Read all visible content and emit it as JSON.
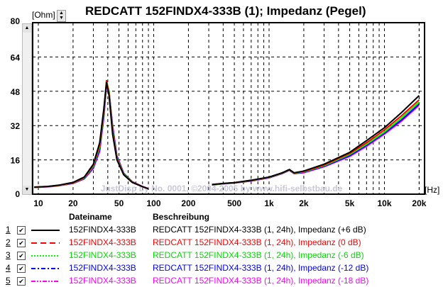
{
  "chart_data": {
    "type": "line",
    "title": "REDCATT 152FINDX4-333B (1); Impedanz (Pegel)",
    "ylabel": "[Ohm]",
    "xlabel": "[Hz]",
    "xscale": "log",
    "xlim": [
      9,
      22000
    ],
    "ylim": [
      0,
      80
    ],
    "yticks": [
      0,
      16,
      32,
      48,
      64,
      80
    ],
    "ytick_labels": [
      "0",
      "16",
      "32",
      "48",
      "64",
      "80"
    ],
    "xticks": [
      10,
      20,
      50,
      100,
      200,
      500,
      1000,
      2000,
      5000,
      10000,
      20000
    ],
    "xtick_labels": [
      "10",
      "20",
      "50",
      "100",
      "200",
      "500",
      "1k",
      "2k",
      "5k",
      "10k",
      "20k"
    ],
    "grid": true,
    "watermark": "JustDisp by No. 0001, ©2004-2005 by www.hifi-selbstbau.de",
    "x": [
      9.2,
      12,
      15,
      20,
      25,
      30,
      34,
      37,
      39,
      41,
      44,
      48,
      55,
      65,
      80,
      90,
      null,
      320,
      400,
      500,
      700,
      1000,
      1300,
      1500,
      1650,
      2000,
      3000,
      5000,
      7000,
      10000,
      14000,
      20000
    ],
    "series": [
      {
        "name": "Impedanz (+6 dB)",
        "color": "#000000",
        "dash": "solid",
        "values": [
          3.3,
          3.6,
          4.2,
          5.5,
          8,
          14,
          24,
          40,
          52,
          46,
          28,
          16,
          9,
          5.5,
          3.5,
          2.5,
          null,
          4.5,
          5,
          5.4,
          6.5,
          8,
          10,
          11.5,
          10,
          10.8,
          14,
          19.5,
          25,
          31,
          38,
          46
        ]
      },
      {
        "name": "Impedanz (0 dB)",
        "color": "#ff0000",
        "dash": "dashed",
        "values": [
          3.3,
          3.6,
          4.1,
          5.3,
          7.7,
          13.5,
          23,
          39,
          53,
          47,
          29,
          16.5,
          9.2,
          5.6,
          3.5,
          2.5,
          null,
          4.5,
          5,
          5.4,
          6.4,
          7.9,
          9.9,
          11.4,
          9.9,
          10.6,
          13.6,
          19,
          24,
          30,
          36.5,
          44
        ]
      },
      {
        "name": "Impedanz (-6 dB)",
        "color": "#00ff00",
        "dash": "dotted",
        "values": [
          3.2,
          3.5,
          4.0,
          5.2,
          7.5,
          13,
          22,
          38,
          53,
          48,
          30,
          17,
          9.4,
          5.7,
          3.5,
          2.5,
          null,
          4.4,
          4.9,
          5.3,
          6.3,
          7.8,
          9.8,
          11.3,
          9.8,
          10.4,
          13.3,
          18.5,
          23.3,
          29,
          35.5,
          43
        ]
      },
      {
        "name": "Impedanz (-12 dB)",
        "color": "#0000ff",
        "dash": "dashdot",
        "values": [
          3.2,
          3.5,
          4.0,
          5.1,
          7.3,
          12.5,
          21,
          37,
          52,
          48,
          31,
          17.5,
          9.6,
          5.8,
          3.5,
          2.5,
          null,
          4.4,
          4.9,
          5.3,
          6.2,
          7.7,
          9.7,
          11.2,
          9.7,
          10.2,
          13,
          18,
          22.8,
          28.5,
          34.5,
          42
        ]
      },
      {
        "name": "Impedanz (-18 dB)",
        "color": "#ff00ff",
        "dash": "dashdotdot",
        "values": [
          3.1,
          3.4,
          3.9,
          5.0,
          7.1,
          12,
          20,
          36,
          51,
          48,
          32,
          18,
          9.8,
          5.9,
          3.6,
          2.6,
          null,
          4.3,
          4.8,
          5.2,
          6.1,
          7.6,
          9.6,
          11.1,
          9.6,
          10,
          12.8,
          17.6,
          22.3,
          28,
          34,
          41.5
        ]
      }
    ]
  },
  "legend": {
    "header_file": "Dateiname",
    "header_desc": "Beschreibung",
    "rows": [
      {
        "num": "1",
        "checked": true,
        "file": "152FINDX4-333B",
        "desc": "REDCATT 152FINDX4-333B (1, 24h), Impedanz (+6 dB)",
        "color": "#000000"
      },
      {
        "num": "2",
        "checked": true,
        "file": "152FINDX4-333B",
        "desc": "REDCATT 152FINDX4-333B (1, 24h), Impedanz (0 dB)",
        "color": "#ff0000"
      },
      {
        "num": "3",
        "checked": true,
        "file": "152FINDX4-333B",
        "desc": "REDCATT 152FINDX4-333B (1, 24h), Impedanz (-6 dB)",
        "color": "#00dd00"
      },
      {
        "num": "4",
        "checked": true,
        "file": "152FINDX4-333B",
        "desc": "REDCATT 152FINDX4-333B (1, 24h), Impedanz (-12 dB)",
        "color": "#0000ff"
      },
      {
        "num": "5",
        "checked": true,
        "file": "152FINDX4-333B",
        "desc": "REDCATT 152FINDX4-333B (1, 24h), Impedanz (-18 dB)",
        "color": "#ff00ff"
      }
    ]
  }
}
